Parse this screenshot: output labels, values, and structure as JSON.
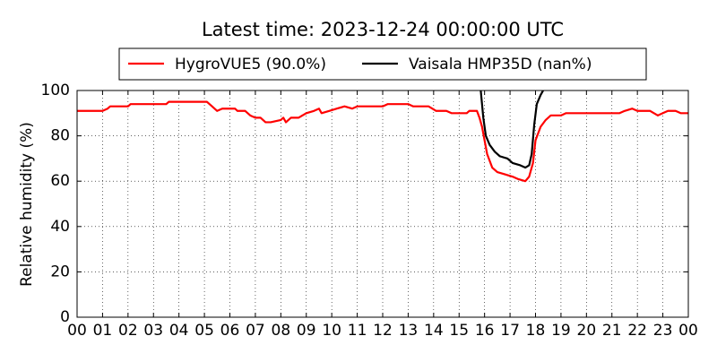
{
  "chart_data": {
    "type": "line",
    "title": "Latest time: 2023-12-24 00:00:00 UTC",
    "ylabel": "Relative humidity (%)",
    "xlim": [
      0,
      24
    ],
    "ylim": [
      0,
      100
    ],
    "xticks": [
      {
        "value": 0,
        "label": "00"
      },
      {
        "value": 1,
        "label": "01"
      },
      {
        "value": 2,
        "label": "02"
      },
      {
        "value": 3,
        "label": "03"
      },
      {
        "value": 4,
        "label": "04"
      },
      {
        "value": 5,
        "label": "05"
      },
      {
        "value": 6,
        "label": "06"
      },
      {
        "value": 7,
        "label": "07"
      },
      {
        "value": 8,
        "label": "08"
      },
      {
        "value": 9,
        "label": "09"
      },
      {
        "value": 10,
        "label": "10"
      },
      {
        "value": 11,
        "label": "11"
      },
      {
        "value": 12,
        "label": "12"
      },
      {
        "value": 13,
        "label": "13"
      },
      {
        "value": 14,
        "label": "14"
      },
      {
        "value": 15,
        "label": "15"
      },
      {
        "value": 16,
        "label": "16"
      },
      {
        "value": 17,
        "label": "17"
      },
      {
        "value": 18,
        "label": "18"
      },
      {
        "value": 19,
        "label": "19"
      },
      {
        "value": 20,
        "label": "20"
      },
      {
        "value": 21,
        "label": "21"
      },
      {
        "value": 22,
        "label": "22"
      },
      {
        "value": 23,
        "label": "23"
      },
      {
        "value": 24,
        "label": "00"
      }
    ],
    "yticks": [
      0,
      20,
      40,
      60,
      80,
      100
    ],
    "grid": true,
    "legend": "top",
    "series": [
      {
        "name": "HygroVUE5 (90.0%)",
        "color": "#ff0000",
        "x": [
          0,
          1,
          1.2,
          1.3,
          2,
          2.1,
          3.5,
          3.6,
          5.1,
          5.3,
          5.5,
          5.7,
          6.2,
          6.3,
          6.6,
          6.8,
          7.0,
          7.2,
          7.4,
          7.6,
          8.0,
          8.1,
          8.2,
          8.4,
          8.7,
          9.0,
          9.3,
          9.5,
          9.6,
          9.9,
          10.2,
          10.5,
          10.8,
          11,
          12,
          12.2,
          13,
          13.2,
          13.8,
          14.1,
          14.5,
          14.7,
          15.3,
          15.4,
          15.7,
          15.8,
          15.9,
          16.0,
          16.1,
          16.3,
          16.5,
          16.8,
          17.1,
          17.3,
          17.6,
          17.75,
          17.9,
          18.0,
          18.2,
          18.4,
          18.6,
          19,
          19.2,
          20,
          21,
          21.3,
          21.5,
          21.8,
          22,
          22.5,
          22.8,
          23.0,
          23.2,
          23.5,
          23.7,
          24
        ],
        "values": [
          91,
          91,
          92,
          93,
          93,
          94,
          94,
          95,
          95,
          93,
          91,
          92,
          92,
          91,
          91,
          89,
          88,
          88,
          86,
          86,
          87,
          88,
          86,
          88,
          88,
          90,
          91,
          92,
          90,
          91,
          92,
          93,
          92,
          93,
          93,
          94,
          94,
          93,
          93,
          91,
          91,
          90,
          90,
          91,
          91,
          88,
          84,
          78,
          72,
          66,
          64,
          63,
          62,
          61,
          60,
          62,
          68,
          78,
          84,
          87,
          89,
          89,
          90,
          90,
          90,
          90,
          91,
          92,
          91,
          91,
          89,
          90,
          91,
          91,
          90,
          90
        ]
      },
      {
        "name": "Vaisala HMP35D (nan%)",
        "color": "#000000",
        "x": [
          15.85,
          15.95,
          16.05,
          16.2,
          16.4,
          16.6,
          16.9,
          17.1,
          17.4,
          17.6,
          17.75,
          17.85,
          17.95,
          18.05,
          18.2,
          18.3
        ],
        "values": [
          100,
          88,
          80,
          76,
          73,
          71,
          70,
          68,
          67,
          66,
          67,
          72,
          85,
          94,
          98,
          100
        ]
      }
    ]
  }
}
